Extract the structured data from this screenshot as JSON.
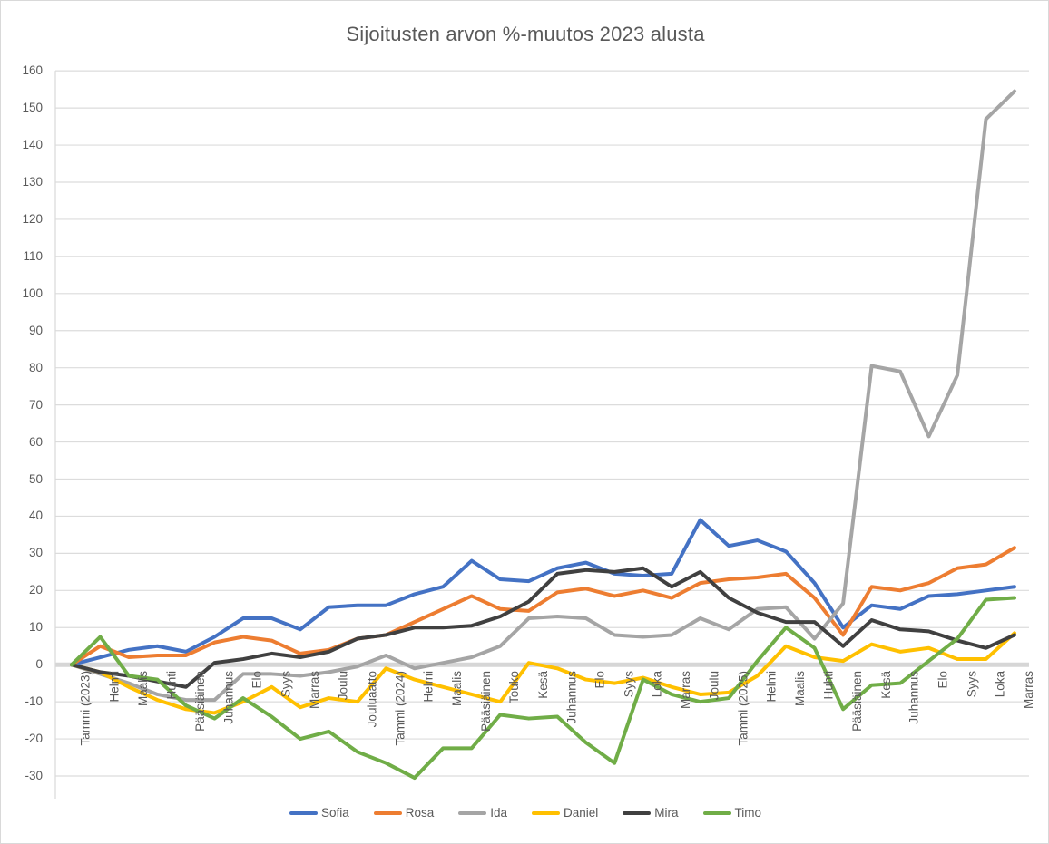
{
  "title": "Sijoitusten arvon %-muutos 2023 alusta",
  "chart_data": {
    "type": "line",
    "title": "Sijoitusten arvon %-muutos 2023 alusta",
    "xlabel": "",
    "ylabel": "",
    "ylim": [
      -30,
      160
    ],
    "ytick_step": 10,
    "y_ticks": [
      160,
      150,
      140,
      130,
      120,
      110,
      100,
      90,
      80,
      70,
      60,
      50,
      40,
      30,
      20,
      10,
      0,
      -10,
      -20,
      -30
    ],
    "grid": true,
    "legend_position": "bottom",
    "categories": [
      "Tammi (2023)",
      "Helmi",
      "Maalis",
      "Huhti",
      "Pääsiäinen",
      "Juhannus",
      "Elo",
      "Syys",
      "Marras",
      "Joulu",
      "Jouluaatto",
      "Tammi (2024)",
      "Helmi",
      "Maalis",
      "Pääsiäinen",
      "Touko",
      "Kesä",
      "Juhannus",
      "Elo",
      "Syys",
      "Loka",
      "Marras",
      "Joulu",
      "Tammi (2025)",
      "Helmi",
      "Maalis",
      "Huhti",
      "Pääsiäinen",
      "Kesä",
      "Juhannus",
      "Elo",
      "Syys",
      "Loka",
      "Marras"
    ],
    "series": [
      {
        "name": "Sofia",
        "color": "#4472C4",
        "values": [
          0,
          2,
          4,
          5,
          3.5,
          7.5,
          12.5,
          12.5,
          9.5,
          15.5,
          16,
          16,
          19,
          21,
          28,
          23,
          22.5,
          26,
          27.5,
          24.5,
          24,
          24.5,
          39,
          32,
          33.5,
          30.5,
          22,
          10,
          16,
          15,
          18.5,
          19,
          20,
          21
        ]
      },
      {
        "name": "Rosa",
        "color": "#ED7D31",
        "values": [
          0,
          5,
          2,
          2.5,
          2.5,
          6,
          7.5,
          6.5,
          3,
          4,
          7,
          8,
          11.5,
          15,
          18.5,
          15,
          14.5,
          19.5,
          20.5,
          18.5,
          20,
          18,
          22,
          23,
          23.5,
          24.5,
          18,
          8,
          21,
          20,
          22,
          26,
          27,
          31.5
        ]
      },
      {
        "name": "Ida",
        "color": "#A5A5A5",
        "values": [
          0,
          -2.5,
          -5,
          -8,
          -9.5,
          -9.5,
          -2.5,
          -2.5,
          -3,
          -2,
          -0.5,
          2.5,
          -1,
          0.5,
          2,
          5,
          12.5,
          13,
          12.5,
          8,
          7.5,
          8,
          12.5,
          9.5,
          15,
          15.5,
          7,
          16.5,
          80.5,
          79,
          61.5,
          78,
          147,
          154.5
        ]
      },
      {
        "name": "Daniel",
        "color": "#FFC000",
        "values": [
          0,
          -2,
          -6,
          -9.5,
          -12,
          -13,
          -10,
          -6,
          -11.5,
          -9,
          -10,
          -1,
          -4,
          -6,
          -8,
          -10,
          0.5,
          -1,
          -4,
          -5,
          -3.5,
          -6,
          -8,
          -7.5,
          -3,
          5,
          2,
          1,
          5.5,
          3.5,
          4.5,
          1.5,
          1.5,
          8.5
        ]
      },
      {
        "name": "Mira",
        "color": "#404040",
        "values": [
          0,
          -2,
          -3,
          -4.5,
          -6,
          0.5,
          1.5,
          3,
          2,
          3.5,
          7,
          8,
          10,
          10,
          10.5,
          13,
          17,
          24.5,
          25.5,
          25,
          26,
          21,
          25,
          18,
          14,
          11.5,
          11.5,
          5,
          12,
          9.5,
          9,
          6.5,
          4.5,
          8
        ]
      },
      {
        "name": "Timo",
        "color": "#70AD47",
        "values": [
          0,
          7.5,
          -3,
          -4,
          -11,
          -14.5,
          -9,
          -14,
          -20,
          -18,
          -23.5,
          -26.5,
          -30.5,
          -22.5,
          -22.5,
          -13.5,
          -14.5,
          -14,
          -21,
          -26.5,
          -4,
          -8,
          -10,
          -9,
          1,
          10,
          4.5,
          -12,
          -5.5,
          -5,
          1,
          7,
          17.5,
          18
        ]
      }
    ]
  }
}
